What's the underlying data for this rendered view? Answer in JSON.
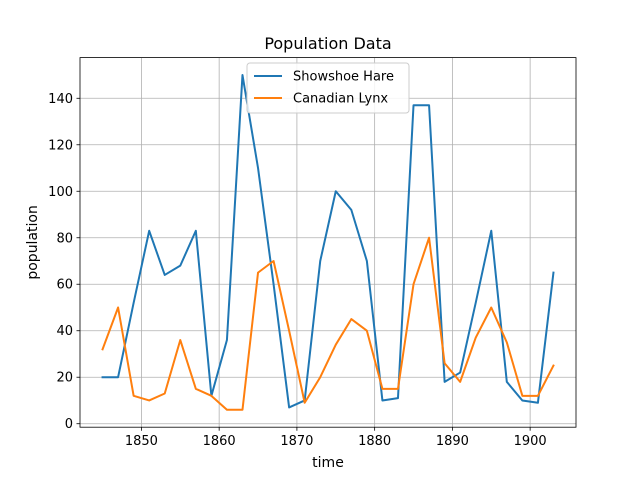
{
  "chart_data": {
    "type": "line",
    "title": "Population Data",
    "xlabel": "time",
    "ylabel": "population",
    "xlim": [
      1842.1,
      1905.9
    ],
    "ylim": [
      -1.5,
      157.5
    ],
    "xticks": [
      1850,
      1860,
      1870,
      1880,
      1890,
      1900
    ],
    "yticks": [
      0,
      20,
      40,
      60,
      80,
      100,
      120,
      140
    ],
    "grid": true,
    "legend_position": "top-center",
    "x": [
      1845,
      1847,
      1849,
      1851,
      1853,
      1855,
      1857,
      1859,
      1861,
      1863,
      1865,
      1867,
      1869,
      1871,
      1873,
      1875,
      1877,
      1879,
      1881,
      1883,
      1885,
      1887,
      1889,
      1891,
      1893,
      1895,
      1897,
      1899,
      1901,
      1903
    ],
    "series": [
      {
        "name": "Showshoe Hare",
        "color": "#1f77b4",
        "values": [
          20,
          20,
          52,
          83,
          64,
          68,
          83,
          12,
          36,
          150,
          110,
          60,
          7,
          10,
          70,
          100,
          92,
          70,
          10,
          11,
          137,
          137,
          18,
          22,
          52,
          83,
          18,
          10,
          9,
          65
        ]
      },
      {
        "name": "Canadian Lynx",
        "color": "#ff7f0e",
        "values": [
          32,
          50,
          12,
          10,
          13,
          36,
          15,
          12,
          6,
          6,
          65,
          70,
          40,
          9,
          20,
          34,
          45,
          40,
          15,
          15,
          60,
          80,
          26,
          18,
          37,
          50,
          35,
          12,
          12,
          25
        ]
      }
    ]
  }
}
